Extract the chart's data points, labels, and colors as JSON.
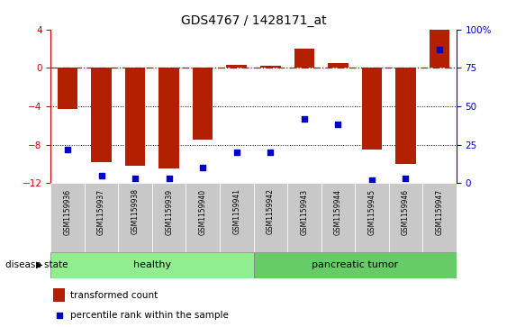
{
  "title": "GDS4767 / 1428171_at",
  "samples": [
    "GSM1159936",
    "GSM1159937",
    "GSM1159938",
    "GSM1159939",
    "GSM1159940",
    "GSM1159941",
    "GSM1159942",
    "GSM1159943",
    "GSM1159944",
    "GSM1159945",
    "GSM1159946",
    "GSM1159947"
  ],
  "transformed_count": [
    -4.3,
    -9.8,
    -10.2,
    -10.5,
    -7.5,
    0.3,
    0.2,
    2.0,
    0.5,
    -8.5,
    -10.0,
    4.0
  ],
  "percentile_rank": [
    22,
    5,
    3,
    3,
    10,
    20,
    20,
    42,
    38,
    2,
    3,
    87
  ],
  "ylim_left": [
    -12,
    4
  ],
  "ylim_right": [
    0,
    100
  ],
  "yticks_left": [
    -12,
    -8,
    -4,
    0,
    4
  ],
  "yticks_right": [
    0,
    25,
    50,
    75,
    100
  ],
  "bar_color": "#B22000",
  "dot_color": "#0000CC",
  "hline_color": "#CC0000",
  "grid_color": "#000000",
  "healthy_color": "#90EE90",
  "tumor_color": "#66CC66",
  "healthy_samples": 6,
  "tumor_samples": 6,
  "disease_label_healthy": "healthy",
  "disease_label_tumor": "pancreatic tumor",
  "legend_bar_label": "transformed count",
  "legend_dot_label": "percentile rank within the sample",
  "xlabel_disease": "disease state",
  "label_box_color": "#C8C8C8"
}
